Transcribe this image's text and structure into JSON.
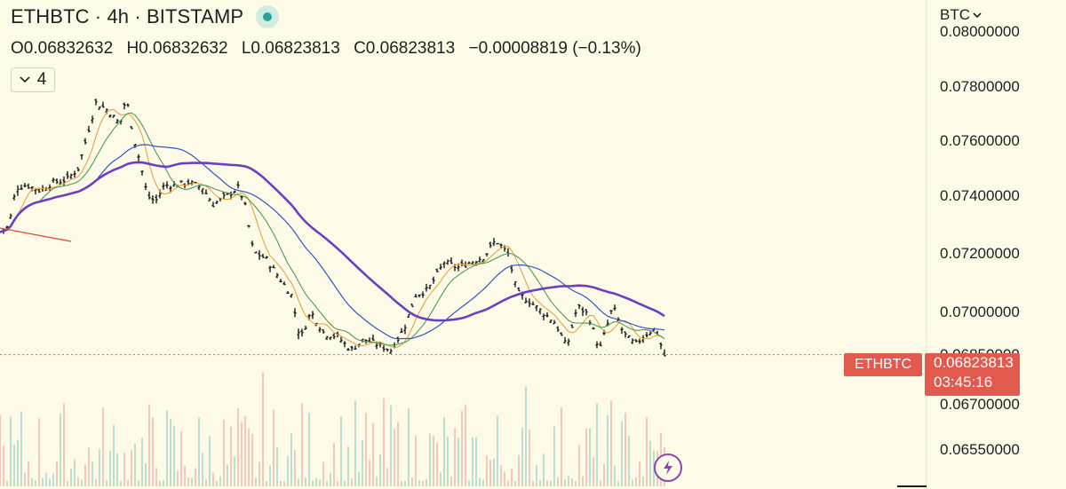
{
  "header": {
    "title": "ETHBTC · 4h · BITSTAMP",
    "ohlc": {
      "open": "O0.06832632",
      "high": "H0.06832632",
      "low": "L0.06823813",
      "close": "C0.06823813",
      "change": "−0.00008819 (−0.13%)"
    },
    "indicator_count": "4"
  },
  "axis": {
    "unit": "BTC",
    "labels": [
      "0.08000000",
      "0.07800000",
      "0.07600000",
      "0.07400000",
      "0.07200000",
      "0.07000000",
      "0.06850000",
      "0.06700000",
      "0.06550000"
    ]
  },
  "last_price": {
    "symbol": "ETHBTC",
    "value": "0.06823813",
    "countdown": "03:45:16"
  },
  "colors": {
    "background": "#fdfbe7",
    "bar": "#1a1a1a",
    "ma_fast": "#e6a33e",
    "ma_mid": "#4c9a57",
    "ma_slow": "#3156c9",
    "ma_thick": "#6b3fc4",
    "last_price": "#e2594e",
    "volume_up": "#8fcfc3",
    "volume_down": "#f0a7a0"
  },
  "chart_data": {
    "type": "line",
    "ylim": [
      0.065,
      0.0805
    ],
    "price_anchors": [
      [
        0,
        0.0727
      ],
      [
        10,
        0.0729
      ],
      [
        18,
        0.0743
      ],
      [
        30,
        0.0744
      ],
      [
        45,
        0.0742
      ],
      [
        60,
        0.0745
      ],
      [
        75,
        0.0746
      ],
      [
        88,
        0.075
      ],
      [
        98,
        0.0762
      ],
      [
        108,
        0.0774
      ],
      [
        122,
        0.0771
      ],
      [
        135,
        0.0766
      ],
      [
        142,
        0.0776
      ],
      [
        150,
        0.0762
      ],
      [
        158,
        0.0752
      ],
      [
        166,
        0.074
      ],
      [
        175,
        0.0738
      ],
      [
        185,
        0.0744
      ],
      [
        198,
        0.0744
      ],
      [
        212,
        0.0745
      ],
      [
        228,
        0.0743
      ],
      [
        240,
        0.0737
      ],
      [
        255,
        0.074
      ],
      [
        268,
        0.0743
      ],
      [
        275,
        0.0738
      ],
      [
        285,
        0.072
      ],
      [
        300,
        0.0717
      ],
      [
        315,
        0.071
      ],
      [
        328,
        0.0704
      ],
      [
        338,
        0.0688
      ],
      [
        350,
        0.0698
      ],
      [
        365,
        0.069
      ],
      [
        380,
        0.0689
      ],
      [
        395,
        0.0684
      ],
      [
        410,
        0.0688
      ],
      [
        425,
        0.0686
      ],
      [
        440,
        0.0684
      ],
      [
        455,
        0.0692
      ],
      [
        468,
        0.0704
      ],
      [
        482,
        0.0706
      ],
      [
        500,
        0.0716
      ],
      [
        515,
        0.0714
      ],
      [
        530,
        0.0716
      ],
      [
        545,
        0.0718
      ],
      [
        558,
        0.0724
      ],
      [
        572,
        0.0719
      ],
      [
        582,
        0.0705
      ],
      [
        595,
        0.0702
      ],
      [
        610,
        0.0698
      ],
      [
        625,
        0.0694
      ],
      [
        638,
        0.0685
      ],
      [
        650,
        0.07
      ],
      [
        662,
        0.0697
      ],
      [
        675,
        0.0684
      ],
      [
        690,
        0.07
      ],
      [
        702,
        0.069
      ],
      [
        715,
        0.0686
      ],
      [
        728,
        0.069
      ],
      [
        738,
        0.0692
      ],
      [
        748,
        0.0682
      ]
    ],
    "moving_averages": [
      {
        "color_key": "ma_fast",
        "period": 6,
        "stroke": 1.1
      },
      {
        "color_key": "ma_mid",
        "period": 12,
        "stroke": 1.1
      },
      {
        "color_key": "ma_slow",
        "period": 28,
        "stroke": 1.2
      },
      {
        "color_key": "ma_thick",
        "period": 48,
        "stroke": 2.6
      }
    ],
    "last_price_value": 0.06823813
  }
}
